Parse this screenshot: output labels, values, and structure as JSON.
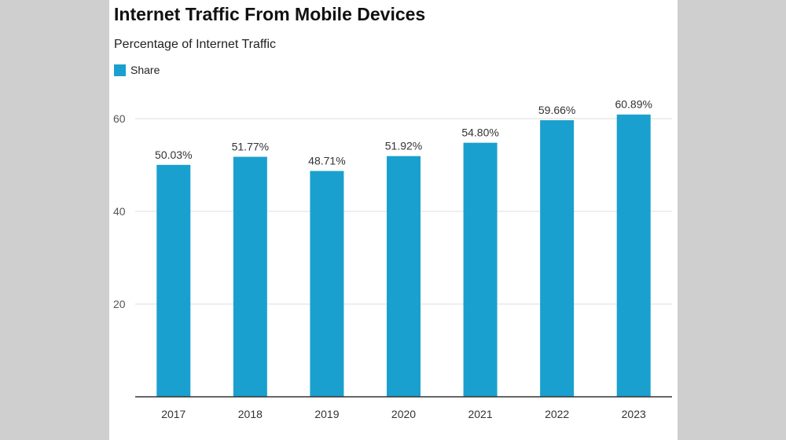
{
  "chart_data": {
    "type": "bar",
    "title": "Internet Traffic From Mobile Devices",
    "subtitle": "Percentage of Internet Traffic",
    "legend": [
      {
        "name": "Share",
        "color": "#1aa0cf"
      }
    ],
    "categories": [
      "2017",
      "2018",
      "2019",
      "2020",
      "2021",
      "2022",
      "2023"
    ],
    "series": [
      {
        "name": "Share",
        "values": [
          50.03,
          51.77,
          48.71,
          51.92,
          54.8,
          59.66,
          60.89
        ],
        "labels": [
          "50.03%",
          "51.77%",
          "48.71%",
          "51.92%",
          "54.80%",
          "59.66%",
          "60.89%"
        ]
      }
    ],
    "yticks": [
      20,
      40,
      60
    ],
    "ylim": [
      0,
      60
    ],
    "xlabel": "",
    "ylabel": "",
    "grid": true
  }
}
